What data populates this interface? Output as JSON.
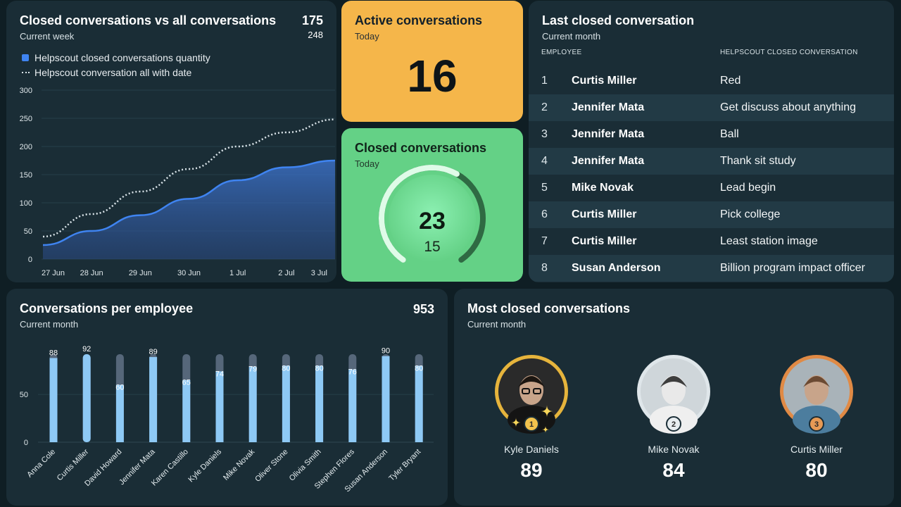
{
  "closed_vs_all": {
    "title": "Closed conversations vs all conversations",
    "subtitle": "Current week",
    "total_closed": "175",
    "total_all": "248",
    "legend": [
      "Helpscout closed conversations quantity",
      "Helpscout conversation all with date"
    ],
    "chart_data": {
      "type": "area",
      "x": [
        "27 Jun",
        "28 Jun",
        "29 Jun",
        "30 Jun",
        "1 Jul",
        "2 Jul",
        "3 Jul"
      ],
      "series": [
        {
          "name": "Helpscout closed conversations quantity",
          "values": [
            25,
            50,
            78,
            107,
            140,
            163,
            175
          ]
        },
        {
          "name": "Helpscout conversation all with date",
          "values": [
            40,
            80,
            120,
            160,
            200,
            225,
            248
          ]
        }
      ],
      "yticks": [
        0,
        50,
        100,
        150,
        200,
        250,
        300
      ],
      "ylim": [
        0,
        300
      ],
      "colors": {
        "closed": "#3f84f1",
        "all": "#d9e3e8"
      }
    }
  },
  "active": {
    "title": "Active conversations",
    "subtitle": "Today",
    "value": "16"
  },
  "closed_today": {
    "title": "Closed conversations",
    "subtitle": "Today",
    "value": "23",
    "secondary": "15",
    "gauge_fraction": 0.6
  },
  "last_closed": {
    "title": "Last closed conversation",
    "subtitle": "Current month",
    "col_employee": "EMPLOYEE",
    "col_conversation": "HELPSCOUT CLOSED CONVERSATION",
    "rows": [
      {
        "n": "1",
        "employee": "Curtis Miller",
        "conversation": "Red"
      },
      {
        "n": "2",
        "employee": "Jennifer Mata",
        "conversation": "Get discuss about anything"
      },
      {
        "n": "3",
        "employee": "Jennifer Mata",
        "conversation": "Ball"
      },
      {
        "n": "4",
        "employee": "Jennifer Mata",
        "conversation": "Thank sit study"
      },
      {
        "n": "5",
        "employee": "Mike Novak",
        "conversation": "Lead begin"
      },
      {
        "n": "6",
        "employee": "Curtis Miller",
        "conversation": "Pick college"
      },
      {
        "n": "7",
        "employee": "Curtis Miller",
        "conversation": "Least station image"
      },
      {
        "n": "8",
        "employee": "Susan Anderson",
        "conversation": "Billion program impact officer"
      }
    ]
  },
  "per_employee": {
    "title": "Conversations per employee",
    "subtitle": "Current month",
    "total": "953",
    "chart_data": {
      "type": "bar",
      "categories": [
        "Anna Cole",
        "Curtis Miller",
        "David Howard",
        "Jennifer Mata",
        "Karen Castillo",
        "Kyle Daniels",
        "Mike Novak",
        "Oliver Stone",
        "Olivia Smith",
        "Stephen Flores",
        "Susan Anderson",
        "Tyler Bryant"
      ],
      "values": [
        88,
        92,
        60,
        89,
        65,
        74,
        79,
        80,
        80,
        76,
        90,
        80
      ],
      "target": 92,
      "yticks": [
        0,
        50
      ],
      "ylim": [
        0,
        100
      ],
      "colors": {
        "bar": "#8ec9f5",
        "track": "#56677a"
      }
    }
  },
  "most_closed": {
    "title": "Most closed conversations",
    "subtitle": "Current month",
    "leaders": [
      {
        "rank": "1",
        "name": "Kyle Daniels",
        "value": "89",
        "ring": "#e6b43c",
        "avatar": "person-glasses-icon"
      },
      {
        "rank": "2",
        "name": "Mike Novak",
        "value": "84",
        "ring": "#dfe6ea",
        "avatar": "person-smiling-icon"
      },
      {
        "rank": "3",
        "name": "Curtis Miller",
        "value": "80",
        "ring": "#e08a45",
        "avatar": "person-beard-icon"
      }
    ]
  }
}
